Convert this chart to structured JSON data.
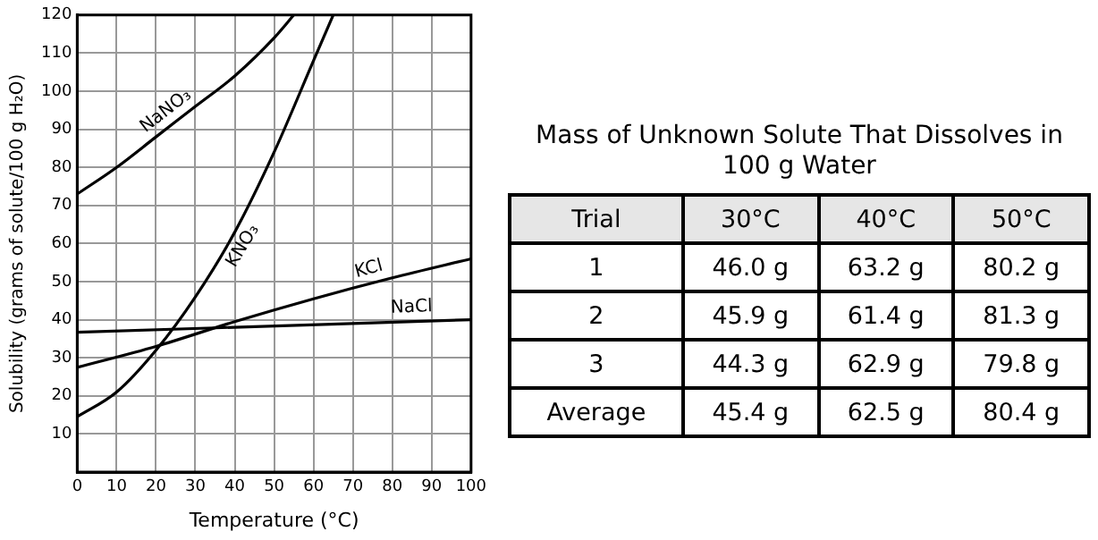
{
  "chart_data": [
    {
      "type": "line",
      "xlabel": "Temperature (°C)",
      "ylabel": "Solubility (grams of solute/100 g H₂O)",
      "xlim": [
        0,
        100
      ],
      "xticks": [
        0,
        10,
        20,
        30,
        40,
        50,
        60,
        70,
        80,
        90,
        100
      ],
      "ylim": [
        0,
        120
      ],
      "yticks": [
        10,
        20,
        30,
        40,
        50,
        60,
        70,
        80,
        90,
        100,
        110,
        120
      ],
      "grid": true,
      "legend": false,
      "marker": "none",
      "series": [
        {
          "name": "NaNO₃",
          "color": "#000000",
          "x": [
            0,
            10,
            20,
            30,
            40,
            50,
            55
          ],
          "values": [
            73,
            80,
            88,
            96,
            104,
            114,
            120
          ]
        },
        {
          "name": "KNO₃",
          "color": "#000000",
          "x": [
            0,
            10,
            20,
            30,
            40,
            50,
            60,
            65
          ],
          "values": [
            14.5,
            21,
            32,
            46,
            63,
            84,
            108,
            120
          ]
        },
        {
          "name": "KCl",
          "color": "#000000",
          "x": [
            0,
            20,
            40,
            60,
            80,
            100
          ],
          "values": [
            27.5,
            33,
            39.5,
            45.5,
            51,
            56
          ]
        },
        {
          "name": "NaCl",
          "color": "#000000",
          "x": [
            0,
            100
          ],
          "values": [
            36.7,
            40
          ]
        }
      ]
    },
    {
      "type": "other",
      "title": "Mass of Unknown Solute That Dissolves in 100 g Water",
      "categories": [
        "Trial",
        "30°C",
        "40°C",
        "50°C"
      ],
      "cell_labels": [
        [
          "1",
          "46.0 g",
          "63.2 g",
          "80.2 g"
        ],
        [
          "2",
          "45.9 g",
          "61.4 g",
          "81.3 g"
        ],
        [
          "3",
          "44.3 g",
          "62.9 g",
          "79.8 g"
        ],
        [
          "Average",
          "45.4 g",
          "62.5 g",
          "80.4 g"
        ]
      ]
    }
  ]
}
